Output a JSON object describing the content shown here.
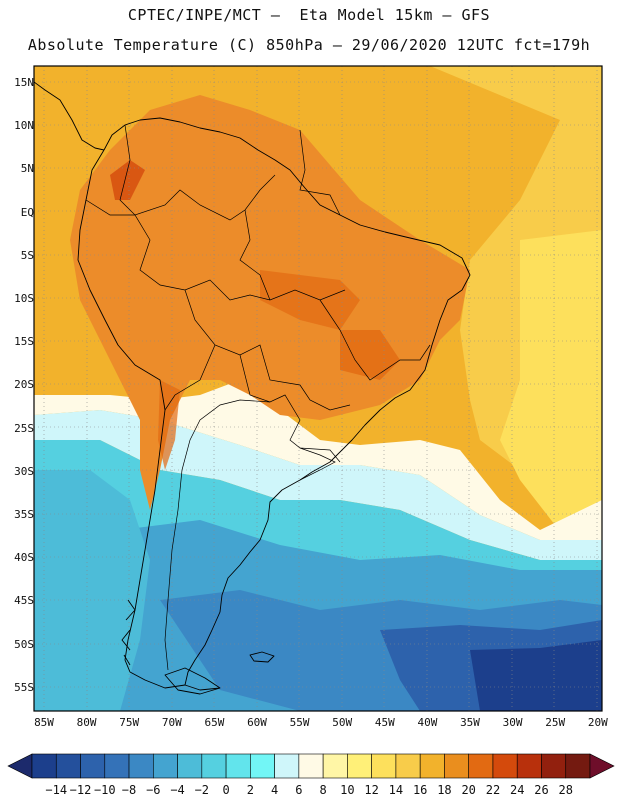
{
  "header": {
    "line1": "CPTEC/INPE/MCT –  Eta Model 15km – GFS",
    "line2": "Absolute Temperature (C) 850hPa – 29/06/2020 12UTC fct=179h"
  },
  "lat_labels": [
    "15N",
    "10N",
    "5N",
    "EQ",
    "5S",
    "10S",
    "15S",
    "20S",
    "25S",
    "30S",
    "35S",
    "40S",
    "45S",
    "50S",
    "55S"
  ],
  "lon_labels": [
    "85W",
    "80W",
    "75W",
    "70W",
    "65W",
    "60W",
    "55W",
    "50W",
    "45W",
    "40W",
    "35W",
    "30W",
    "25W",
    "20W"
  ],
  "colorbar": {
    "labels": [
      "-14",
      "-12",
      "-10",
      "-8",
      "-6",
      "-4",
      "-2",
      "0",
      "2",
      "4",
      "6",
      "8",
      "10",
      "12",
      "14",
      "16",
      "18",
      "20",
      "22",
      "24",
      "26",
      "28"
    ],
    "colors": [
      "#1c3f8c",
      "#24509c",
      "#2d62ac",
      "#3472b8",
      "#3b88c4",
      "#44a4d0",
      "#4dbcd8",
      "#55d0e0",
      "#62e4ec",
      "#72f6f6",
      "#cff6fa",
      "#fffae6",
      "#fff6a6",
      "#fff078",
      "#fde05c",
      "#f8cc4a",
      "#f2b22c",
      "#ea8e1e",
      "#e26a12",
      "#d44a0c",
      "#b8300c",
      "#92200e",
      "#741a10"
    ]
  },
  "colors": {
    "hot_orange": "#f0a020",
    "warm_orange": "#ec8c2a",
    "cold_cyan": "#4ed0e4",
    "deep_blue": "#2e64b0",
    "frame": "#000000"
  }
}
